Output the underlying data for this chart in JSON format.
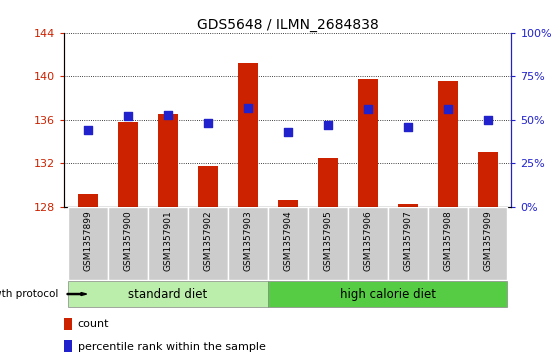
{
  "title": "GDS5648 / ILMN_2684838",
  "samples": [
    "GSM1357899",
    "GSM1357900",
    "GSM1357901",
    "GSM1357902",
    "GSM1357903",
    "GSM1357904",
    "GSM1357905",
    "GSM1357906",
    "GSM1357907",
    "GSM1357908",
    "GSM1357909"
  ],
  "counts": [
    129.2,
    135.8,
    136.5,
    131.8,
    141.2,
    128.6,
    132.5,
    139.7,
    128.3,
    139.6,
    133.0
  ],
  "percentiles": [
    44,
    52,
    53,
    48,
    57,
    43,
    47,
    56,
    46,
    56,
    50
  ],
  "ylim_left": [
    128,
    144
  ],
  "ylim_right": [
    0,
    100
  ],
  "yticks_left": [
    128,
    132,
    136,
    140,
    144
  ],
  "yticks_right": [
    0,
    25,
    50,
    75,
    100
  ],
  "ytick_labels_right": [
    "0%",
    "25%",
    "50%",
    "75%",
    "100%"
  ],
  "bar_color": "#cc2200",
  "scatter_color": "#2222cc",
  "bar_bottom": 128,
  "bar_width": 0.5,
  "scatter_size": 28,
  "standard_diet_label": "standard diet",
  "high_calorie_label": "high calorie diet",
  "group_label": "growth protocol",
  "legend_count": "count",
  "legend_percentile": "percentile rank within the sample",
  "standard_diet_color": "#bbeeaa",
  "high_calorie_color": "#55cc44",
  "xticklabel_bg": "#cccccc",
  "n_standard": 5,
  "n_high": 6
}
